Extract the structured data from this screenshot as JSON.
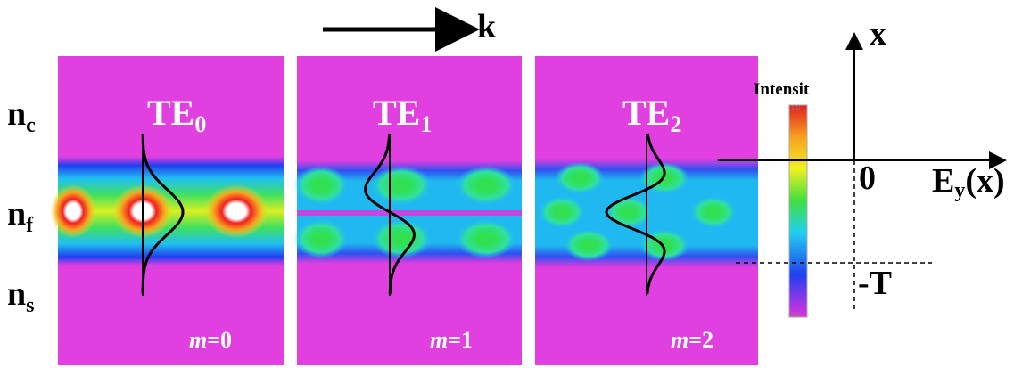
{
  "arrow_label": "k",
  "layers": [
    {
      "base": "n",
      "sub": "c"
    },
    {
      "base": "n",
      "sub": "f"
    },
    {
      "base": "n",
      "sub": "s"
    }
  ],
  "modes": [
    {
      "title": {
        "base": "TE",
        "sub": "0"
      },
      "order": {
        "var": "m",
        "rest": "=0"
      }
    },
    {
      "title": {
        "base": "TE",
        "sub": "1"
      },
      "order": {
        "var": "m",
        "rest": "=1"
      }
    },
    {
      "title": {
        "base": "TE",
        "sub": "2"
      },
      "order": {
        "var": "m",
        "rest": "=2"
      }
    }
  ],
  "colorbar": {
    "title": "Intensit",
    "max": "1.0",
    "min": "0.0"
  },
  "axis": {
    "vertical": "x",
    "origin": "0",
    "horizontal": {
      "base": "E",
      "sub": "y",
      "suffix": "(x)"
    },
    "thickness": "-T"
  }
}
